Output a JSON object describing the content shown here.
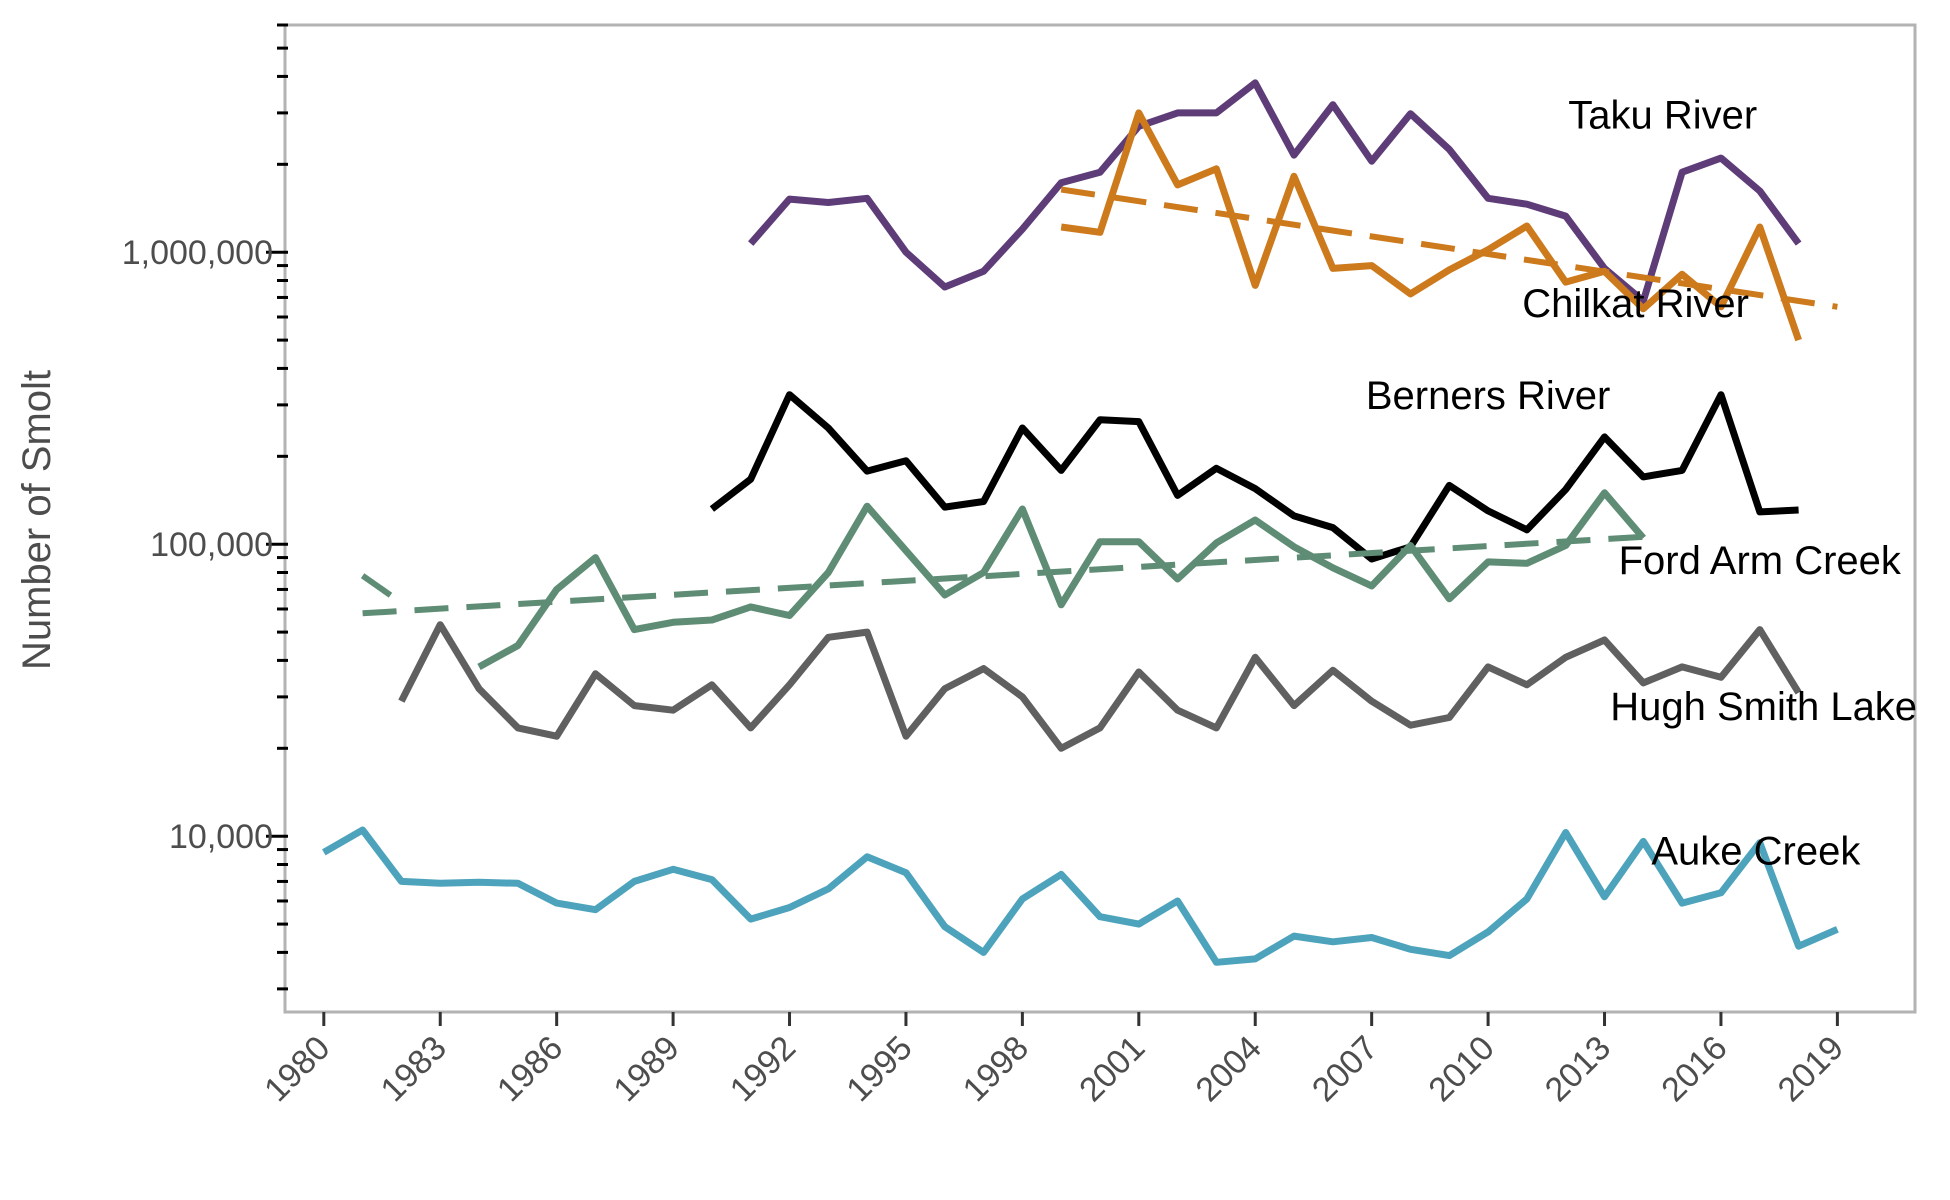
{
  "chart_data": {
    "type": "line",
    "title": "",
    "xlabel": "",
    "ylabel": "Number of Smolt",
    "y_scale": "log",
    "xlim": [
      1979,
      2021
    ],
    "ylim": [
      2500,
      6000000
    ],
    "x_ticks": [
      1980,
      1983,
      1986,
      1989,
      1992,
      1995,
      1998,
      2001,
      2004,
      2007,
      2010,
      2013,
      2016,
      2019
    ],
    "x_tick_labels": [
      "1980",
      "1983",
      "1986",
      "1989",
      "1992",
      "1995",
      "1998",
      "2001",
      "2004",
      "2007",
      "2010",
      "2013",
      "2016",
      "2019"
    ],
    "y_ticks": [
      10000,
      100000,
      1000000
    ],
    "y_tick_labels": [
      "10,000",
      "100,000",
      "1,000,000"
    ],
    "grid": false,
    "legend": "direct labels",
    "series": [
      {
        "name": "Taku River",
        "color": "#5e3c78",
        "x": [
          1991,
          1992,
          1993,
          1994,
          1995,
          1996,
          1997,
          1998,
          1999,
          2000,
          2001,
          2002,
          2003,
          2004,
          2005,
          2006,
          2007,
          2008,
          2009,
          2010,
          2011,
          2012,
          2013,
          2014,
          2015,
          2016,
          2017,
          2018
        ],
        "values": [
          1070000,
          1520000,
          1480000,
          1530000,
          1000000,
          760000,
          860000,
          1200000,
          1730000,
          1880000,
          2700000,
          3000000,
          3000000,
          3800000,
          2150000,
          3200000,
          2050000,
          2980000,
          2250000,
          1530000,
          1460000,
          1330000,
          880000,
          680000,
          1880000,
          2100000,
          1620000,
          1070000
        ]
      },
      {
        "name": "Chilkat River",
        "color": "#cc7a1c",
        "x": [
          1999,
          2000,
          2001,
          2002,
          2003,
          2004,
          2005,
          2006,
          2007,
          2008,
          2009,
          2010,
          2011,
          2012,
          2013,
          2014,
          2015,
          2016,
          2017,
          2018
        ],
        "values": [
          1220000,
          1170000,
          3000000,
          1700000,
          1930000,
          770000,
          1820000,
          880000,
          900000,
          720000,
          870000,
          1020000,
          1230000,
          790000,
          860000,
          640000,
          840000,
          650000,
          1220000,
          500000
        ]
      },
      {
        "name": "Chilkat River trend",
        "color": "#cc7a1c",
        "dashed": true,
        "x": [
          1999,
          2019
        ],
        "values": [
          1640000,
          650000
        ]
      },
      {
        "name": "Berners River",
        "color": "#000000",
        "x": [
          1990,
          1991,
          1992,
          1993,
          1994,
          1995,
          1996,
          1997,
          1998,
          1999,
          2000,
          2001,
          2002,
          2003,
          2004,
          2005,
          2006,
          2007,
          2008,
          2009,
          2010,
          2011,
          2012,
          2013,
          2014,
          2015,
          2016,
          2017,
          2018
        ],
        "values": [
          132000,
          167000,
          325000,
          250000,
          178000,
          193000,
          134000,
          140000,
          250000,
          179000,
          267000,
          263000,
          147000,
          182000,
          155000,
          125000,
          114000,
          89000,
          98000,
          159000,
          130000,
          112000,
          154000,
          233000,
          170000,
          179000,
          325000,
          129000,
          131000
        ]
      },
      {
        "name": "Ford Arm Creek",
        "color": "#5e8c74",
        "x": [
          1984,
          1985,
          1986,
          1987,
          1988,
          1989,
          1990,
          1991,
          1992,
          1993,
          1994,
          1995,
          1996,
          1997,
          1998,
          1999,
          2000,
          2001,
          2002,
          2003,
          2004,
          2005,
          2006,
          2007,
          2008,
          2009,
          2010,
          2011,
          2012,
          2013,
          2014
        ],
        "values": [
          38000,
          45000,
          70000,
          90000,
          51000,
          54000,
          55000,
          61000,
          57000,
          80000,
          135000,
          95000,
          67000,
          80000,
          132000,
          62000,
          102000,
          102000,
          76000,
          101000,
          121000,
          98000,
          83000,
          72000,
          99000,
          65000,
          87000,
          86000,
          99000,
          150000,
          105000
        ]
      },
      {
        "name": "Ford Arm Creek early",
        "color": "#5e8c74",
        "dashed": true,
        "x": [
          1981,
          1982
        ],
        "values": [
          78000,
          63000
        ]
      },
      {
        "name": "Ford Arm Creek trend",
        "color": "#5e8c74",
        "dashed": true,
        "x": [
          1981,
          2014
        ],
        "values": [
          58000,
          106000
        ]
      },
      {
        "name": "Hugh Smith Lake",
        "color": "#606060",
        "x": [
          1982,
          1983,
          1984,
          1985,
          1986,
          1987,
          1988,
          1989,
          1990,
          1991,
          1992,
          1993,
          1994,
          1995,
          1996,
          1997,
          1998,
          1999,
          2000,
          2001,
          2002,
          2003,
          2004,
          2005,
          2006,
          2007,
          2008,
          2009,
          2010,
          2011,
          2012,
          2013,
          2014,
          2015,
          2016,
          2017,
          2018
        ],
        "values": [
          29000,
          53000,
          32000,
          23500,
          22000,
          36000,
          28000,
          27000,
          33000,
          23500,
          33000,
          48000,
          50000,
          22000,
          32000,
          37500,
          30000,
          20000,
          23500,
          36500,
          27000,
          23500,
          41000,
          28000,
          37000,
          29000,
          24000,
          25500,
          38000,
          33000,
          41000,
          47000,
          33500,
          38000,
          35000,
          51000,
          31000
        ]
      },
      {
        "name": "Auke Creek",
        "color": "#4da3bc",
        "x": [
          1980,
          1981,
          1982,
          1983,
          1984,
          1985,
          1986,
          1987,
          1988,
          1989,
          1990,
          1991,
          1992,
          1993,
          1994,
          1995,
          1996,
          1997,
          1998,
          1999,
          2000,
          2001,
          2002,
          2003,
          2004,
          2005,
          2006,
          2007,
          2008,
          2009,
          2010,
          2011,
          2012,
          2013,
          2014,
          2015,
          2016,
          2017,
          2018,
          2019
        ],
        "values": [
          8800,
          10500,
          7000,
          6900,
          6950,
          6900,
          5900,
          5600,
          7000,
          7700,
          7100,
          5200,
          5700,
          6600,
          8500,
          7500,
          4900,
          4000,
          6100,
          7400,
          5300,
          5000,
          6000,
          3700,
          3800,
          4550,
          4350,
          4500,
          4100,
          3900,
          4700,
          6100,
          10300,
          6200,
          9600,
          5900,
          6400,
          9500,
          4200,
          4800
        ]
      }
    ],
    "labels": [
      {
        "text": "Taku River",
        "x": 2014.5,
        "y": 2650000
      },
      {
        "text": "Chilkat River",
        "x": 2013.8,
        "y": 600000
      },
      {
        "text": "Berners River",
        "x": 2010.0,
        "y": 290000
      },
      {
        "text": "Ford Arm Creek",
        "x": 2017.0,
        "y": 79000
      },
      {
        "text": "Hugh Smith Lake",
        "x": 2017.1,
        "y": 25000
      },
      {
        "text": "Auke Creek",
        "x": 2016.9,
        "y": 8000
      }
    ]
  }
}
